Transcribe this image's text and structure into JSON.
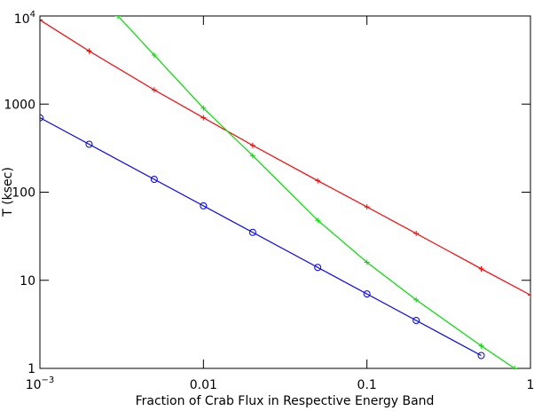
{
  "chart_data": {
    "type": "line",
    "x_label": "Fraction of Crab Flux in Respective Energy Band",
    "y_label": "T (ksec)",
    "log_x": true,
    "log_y": true,
    "xlim": [
      0.001,
      1
    ],
    "ylim": [
      1,
      10000
    ],
    "xticks": [
      {
        "value": 0.001,
        "label": "10",
        "sup": "−3"
      },
      0.01,
      0.1,
      1
    ],
    "yticks": [
      1,
      10,
      100,
      1000,
      {
        "value": 10000,
        "label": "10",
        "sup": "4"
      }
    ],
    "series": [
      {
        "color": "#ff0000",
        "marker": "plus",
        "x": [
          0.001,
          0.002,
          0.005,
          0.01,
          0.02,
          0.05,
          0.1,
          0.2,
          0.5,
          1
        ],
        "values": [
          9000,
          4000,
          1450,
          700,
          340,
          135,
          68,
          34,
          13.5,
          6.8
        ]
      },
      {
        "color": "#0000ff",
        "marker": "circle",
        "x": [
          0.001,
          0.002,
          0.005,
          0.01,
          0.02,
          0.05,
          0.1,
          0.2,
          0.5
        ],
        "values": [
          700,
          350,
          140,
          70,
          35,
          14,
          7,
          3.5,
          1.4
        ]
      },
      {
        "color": "#00e000",
        "marker": "plus",
        "x": [
          0.003,
          0.005,
          0.01,
          0.02,
          0.05,
          0.1,
          0.2,
          0.5,
          0.8
        ],
        "values": [
          10000,
          3600,
          900,
          260,
          48,
          16,
          6,
          1.8,
          1
        ]
      }
    ]
  }
}
